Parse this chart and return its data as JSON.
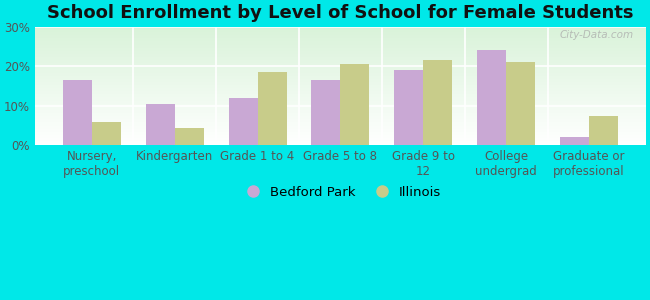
{
  "title": "School Enrollment by Level of School for Female Students",
  "categories": [
    "Nursery,\npreschool",
    "Kindergarten",
    "Grade 1 to 4",
    "Grade 5 to 8",
    "Grade 9 to\n12",
    "College\nundergrad",
    "Graduate or\nprofessional"
  ],
  "bedford_park": [
    16.5,
    10.5,
    12.0,
    16.5,
    19.0,
    24.0,
    2.0
  ],
  "illinois": [
    6.0,
    4.5,
    18.5,
    20.5,
    21.5,
    21.0,
    7.5
  ],
  "bedford_color": "#c9a8d4",
  "illinois_color": "#c8cc8a",
  "background_color": "#00e8e8",
  "ylim": [
    0,
    30
  ],
  "yticks": [
    0,
    10,
    20,
    30
  ],
  "ytick_labels": [
    "0%",
    "10%",
    "20%",
    "30%"
  ],
  "watermark": "City-Data.com",
  "legend_bedford": "Bedford Park",
  "legend_illinois": "Illinois",
  "bar_width": 0.35,
  "title_fontsize": 13,
  "tick_fontsize": 8.5,
  "legend_fontsize": 9.5
}
